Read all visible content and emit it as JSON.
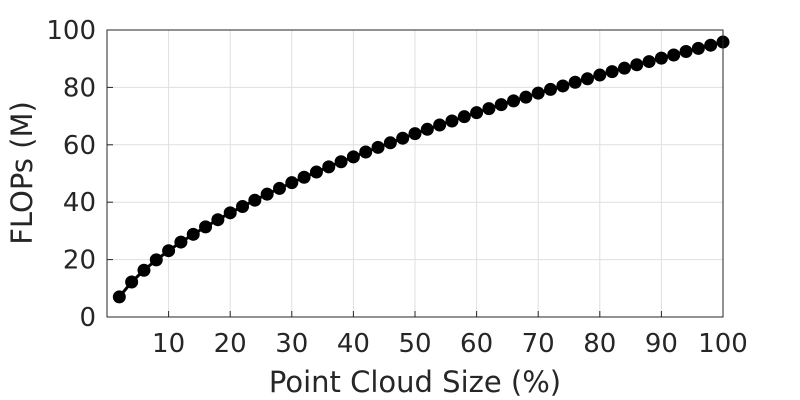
{
  "chart_data": {
    "type": "line",
    "title": "",
    "xlabel": "Point Cloud Size (%)",
    "ylabel": "FLOPs (M)",
    "xlim": [
      0,
      100
    ],
    "ylim": [
      0,
      100
    ],
    "x_ticks": [
      10,
      20,
      30,
      40,
      50,
      60,
      70,
      80,
      90,
      100
    ],
    "y_ticks": [
      0,
      20,
      40,
      60,
      80,
      100
    ],
    "grid": true,
    "legend": "none",
    "series": [
      {
        "color": "#000000",
        "marker": "filled-circle",
        "x": [
          2,
          4,
          6,
          8,
          10,
          12,
          14,
          16,
          18,
          20,
          22,
          24,
          26,
          28,
          30,
          32,
          34,
          36,
          38,
          40,
          42,
          44,
          46,
          48,
          50,
          52,
          54,
          56,
          58,
          60,
          62,
          64,
          66,
          68,
          70,
          72,
          74,
          76,
          78,
          80,
          82,
          84,
          86,
          88,
          90,
          92,
          94,
          96,
          98,
          100
        ],
        "y": [
          7.0,
          12.2,
          16.3,
          19.9,
          23.1,
          26.1,
          28.8,
          31.4,
          33.9,
          36.3,
          38.5,
          40.7,
          42.8,
          44.8,
          46.8,
          48.7,
          50.5,
          52.3,
          54.1,
          55.8,
          57.5,
          59.1,
          60.7,
          62.3,
          63.9,
          65.4,
          66.9,
          68.3,
          69.8,
          71.2,
          72.6,
          74.0,
          75.3,
          76.6,
          78.0,
          79.3,
          80.5,
          81.8,
          83.0,
          84.3,
          85.5,
          86.7,
          87.9,
          89.0,
          90.2,
          91.3,
          92.5,
          93.6,
          94.7,
          95.8
        ]
      }
    ]
  }
}
